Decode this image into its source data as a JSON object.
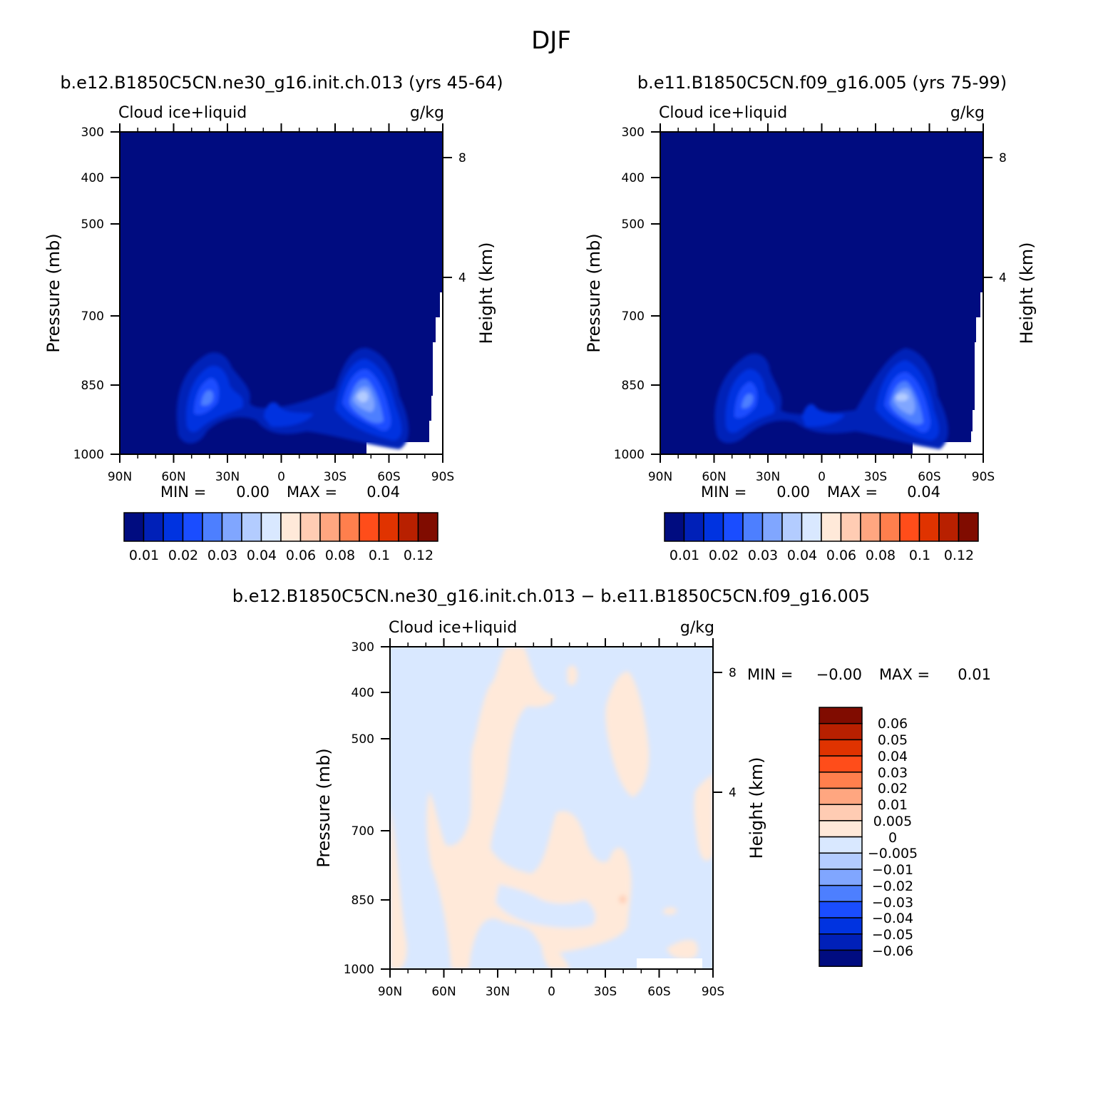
{
  "figure_title": "DJF",
  "colors": {
    "seq_palette": [
      "#000c80",
      "#0020b8",
      "#0033e0",
      "#1a4dff",
      "#4d7fff",
      "#80a6ff",
      "#b3ccff",
      "#d9e8ff",
      "#ffe9d9",
      "#ffccb3",
      "#ffa680",
      "#ff7f4d",
      "#ff4d1a",
      "#e03300",
      "#b82000",
      "#800c00"
    ],
    "diff_palette": [
      "#000c80",
      "#0020b8",
      "#0033e0",
      "#1a4dff",
      "#4d7fff",
      "#80a6ff",
      "#b3ccff",
      "#d9e8ff",
      "#ffe9d9",
      "#ffccb3",
      "#ffa680",
      "#ff7f4d",
      "#ff4d1a",
      "#e03300",
      "#b82000",
      "#800c00"
    ],
    "missing": "#ffffff"
  },
  "chart_data": [
    {
      "type": "heatmap",
      "title": "b.e12.B1850C5CN.ne30_g16.init.ch.013 (yrs 45-64)",
      "left_string": "Cloud ice+liquid",
      "right_string": "g/kg",
      "ylabel": "Pressure (mb)",
      "right_ylabel": "Height (km)",
      "x_ticks": [
        "90N",
        "60N",
        "30N",
        "0",
        "30S",
        "60S",
        "90S"
      ],
      "y_ticks": [
        "300",
        "400",
        "500",
        "700",
        "850",
        "1000"
      ],
      "right_ticks": [
        "8",
        "4"
      ],
      "stats_text": {
        "min_label": "MIN =",
        "min_value": "0.00",
        "max_label": "MAX =",
        "max_value": "0.04"
      },
      "colorbar_labels": [
        "0.01",
        "0.02",
        "0.03",
        "0.04",
        "0.06",
        "0.08",
        "0.1",
        "0.12"
      ],
      "min": 0.0,
      "max": 0.04
    },
    {
      "type": "heatmap",
      "title": "b.e11.B1850C5CN.f09_g16.005 (yrs 75-99)",
      "left_string": "Cloud ice+liquid",
      "right_string": "g/kg",
      "ylabel": "Pressure (mb)",
      "right_ylabel": "Height (km)",
      "x_ticks": [
        "90N",
        "60N",
        "30N",
        "0",
        "30S",
        "60S",
        "90S"
      ],
      "y_ticks": [
        "300",
        "400",
        "500",
        "700",
        "850",
        "1000"
      ],
      "right_ticks": [
        "8",
        "4"
      ],
      "stats_text": {
        "min_label": "MIN =",
        "min_value": "0.00",
        "max_label": "MAX =",
        "max_value": "0.04"
      },
      "colorbar_labels": [
        "0.01",
        "0.02",
        "0.03",
        "0.04",
        "0.06",
        "0.08",
        "0.1",
        "0.12"
      ],
      "min": 0.0,
      "max": 0.04
    },
    {
      "type": "heatmap",
      "title": "b.e12.B1850C5CN.ne30_g16.init.ch.013 − b.e11.B1850C5CN.f09_g16.005",
      "left_string": "Cloud ice+liquid",
      "right_string": "g/kg",
      "ylabel": "Pressure (mb)",
      "right_ylabel": "Height (km)",
      "x_ticks": [
        "90N",
        "60N",
        "30N",
        "0",
        "30S",
        "60S",
        "90S"
      ],
      "y_ticks": [
        "300",
        "400",
        "500",
        "700",
        "850",
        "1000"
      ],
      "right_ticks": [
        "8",
        "4"
      ],
      "stats_text": {
        "min_label": "MIN =",
        "min_value": "−0.00",
        "max_label": "MAX =",
        "max_value": "0.01"
      },
      "colorbar_labels": [
        "0.06",
        "0.05",
        "0.04",
        "0.03",
        "0.02",
        "0.01",
        "0.005",
        "0",
        "−0.005",
        "−0.01",
        "−0.02",
        "−0.03",
        "−0.04",
        "−0.05",
        "−0.06"
      ],
      "min": -0.0,
      "max": 0.01
    }
  ]
}
